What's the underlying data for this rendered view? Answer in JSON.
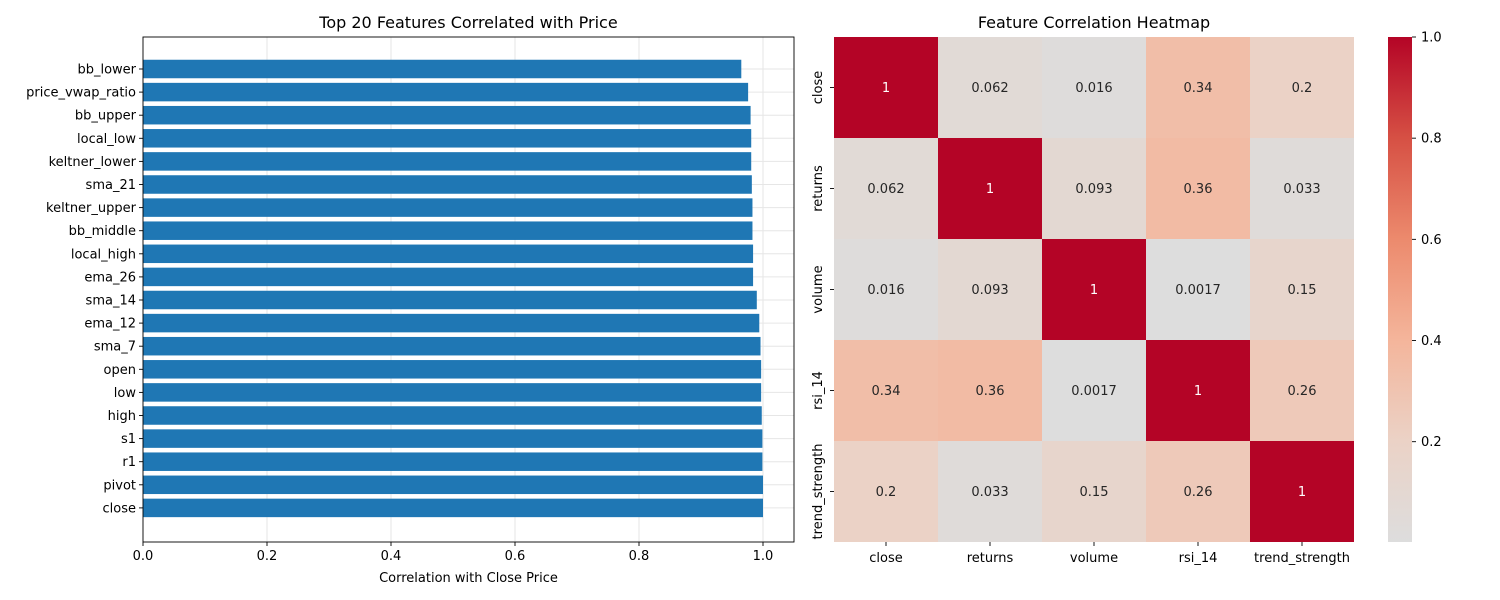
{
  "chart_data": [
    {
      "type": "bar",
      "orientation": "horizontal",
      "title": "Top 20 Features Correlated with Price",
      "xlabel": "Correlation with Close Price",
      "ylabel": "",
      "xlim": [
        0,
        1.05
      ],
      "xticks": [
        "0.0",
        "0.2",
        "0.4",
        "0.6",
        "0.8",
        "1.0"
      ],
      "grid": true,
      "bar_color": "#1f77b4",
      "categories": [
        "bb_lower",
        "price_vwap_ratio",
        "bb_upper",
        "local_low",
        "keltner_lower",
        "sma_21",
        "keltner_upper",
        "bb_middle",
        "local_high",
        "ema_26",
        "sma_14",
        "ema_12",
        "sma_7",
        "open",
        "low",
        "high",
        "s1",
        "r1",
        "pivot",
        "close"
      ],
      "values": [
        0.965,
        0.976,
        0.98,
        0.981,
        0.981,
        0.982,
        0.983,
        0.983,
        0.984,
        0.984,
        0.99,
        0.994,
        0.996,
        0.997,
        0.997,
        0.998,
        0.999,
        0.999,
        1.0,
        1.0
      ]
    },
    {
      "type": "heatmap",
      "title": "Feature Correlation Heatmap",
      "labels": [
        "close",
        "returns",
        "volume",
        "rsi_14",
        "trend_strength"
      ],
      "matrix": [
        [
          1,
          0.062,
          0.016,
          0.34,
          0.2
        ],
        [
          0.062,
          1,
          0.093,
          0.36,
          0.033
        ],
        [
          0.016,
          0.093,
          1,
          0.0017,
          0.15
        ],
        [
          0.34,
          0.36,
          0.0017,
          1,
          0.26
        ],
        [
          0.2,
          0.033,
          0.15,
          0.26,
          1
        ]
      ],
      "cell_text": [
        [
          "1",
          "0.062",
          "0.016",
          "0.34",
          "0.2"
        ],
        [
          "0.062",
          "1",
          "0.093",
          "0.36",
          "0.033"
        ],
        [
          "0.016",
          "0.093",
          "1",
          "0.0017",
          "0.15"
        ],
        [
          "0.34",
          "0.36",
          "0.0017",
          "1",
          "0.26"
        ],
        [
          "0.2",
          "0.033",
          "0.15",
          "0.26",
          "1"
        ]
      ],
      "colormap": "coolwarm",
      "vmin": 0.0017,
      "vmax": 1.0,
      "colorbar_ticks": [
        0.2,
        0.4,
        0.6,
        0.8,
        1.0
      ],
      "colorbar_tick_labels": [
        "0.2",
        "0.4",
        "0.6",
        "0.8",
        "1.0"
      ]
    }
  ]
}
